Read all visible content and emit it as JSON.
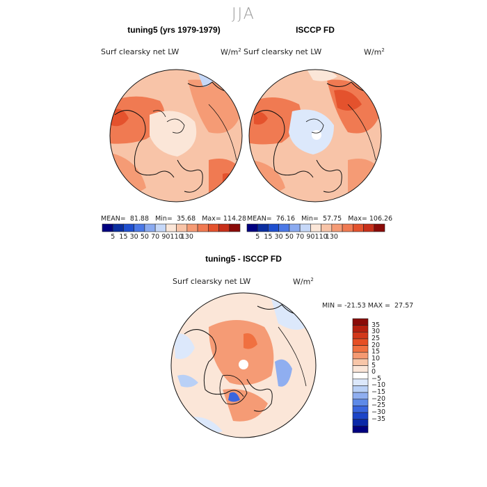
{
  "figure": {
    "season": "JJA"
  },
  "panels": [
    {
      "title": "tuning5 (yrs 1979-1979)",
      "variable": "Surf clearsky net LW",
      "unit": "W/m",
      "unit_exp": "2",
      "stats": {
        "mean_label": "MEAN=",
        "mean": "81.88",
        "min_label": "Min=",
        "min": "35.68",
        "max_label": "Max=",
        "max": "114.28"
      }
    },
    {
      "title": "ISCCP FD",
      "variable": "Surf clearsky net LW",
      "unit": "W/m",
      "unit_exp": "2",
      "stats": {
        "mean_label": "MEAN=",
        "mean": "76.16",
        "min_label": "Min=",
        "min": "57.75",
        "max_label": "Max=",
        "max": "106.26"
      }
    },
    {
      "title": "tuning5 - ISCCP FD",
      "variable": "Surf clearsky net LW",
      "unit": "W/m",
      "unit_exp": "2",
      "stats": {
        "min_label": "MIN =",
        "min": "-21.53",
        "max_label": "MAX =",
        "max": "27.57"
      }
    }
  ],
  "colorbar_abs": {
    "colors": [
      "#000080",
      "#0a2ea0",
      "#1f4fcf",
      "#4b78e6",
      "#8aaaf0",
      "#c6d8f8",
      "#fbe6d8",
      "#f8c4a8",
      "#f59b75",
      "#f07a52",
      "#e4522d",
      "#c8301a",
      "#8a0b08"
    ],
    "labels": [
      "5",
      "15",
      "30",
      "50",
      "70",
      "90",
      "110",
      "130"
    ]
  },
  "colorbar_diff": {
    "colors_top_to_bottom": [
      "#8a0b08",
      "#b5200f",
      "#d2381a",
      "#e64f24",
      "#f07040",
      "#f59a72",
      "#f8c6a8",
      "#fbe6d8",
      "#ffffff",
      "#dce8fb",
      "#b9d0f6",
      "#8faef0",
      "#5e8ae8",
      "#3a66de",
      "#1c45c8",
      "#0a28a8",
      "#000080"
    ],
    "labels": [
      "35",
      "30",
      "25",
      "20",
      "15",
      "10",
      "5",
      "0",
      "−5",
      "−10",
      "−15",
      "−20",
      "−25",
      "−30",
      "−35"
    ]
  }
}
